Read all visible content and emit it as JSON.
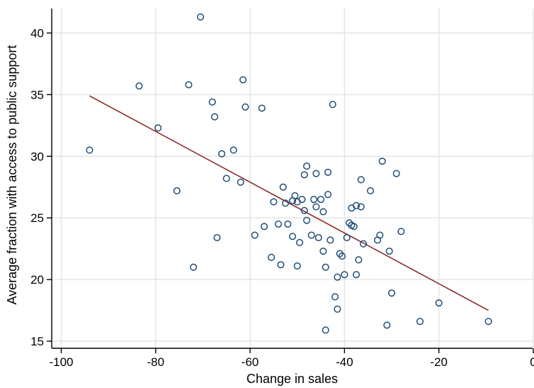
{
  "chart_data": {
    "type": "scatter",
    "title": "",
    "xlabel": "Change in sales",
    "ylabel": "Average fraction with access to public support",
    "xlim": [
      -100,
      0
    ],
    "ylim": [
      15,
      42
    ],
    "xticks": [
      -100,
      -80,
      -60,
      -40,
      -20,
      0
    ],
    "xtick_labels": [
      "-100",
      "-80",
      "-60",
      "-40",
      "-20",
      "0"
    ],
    "yticks": [
      15,
      20,
      25,
      30,
      35,
      40
    ],
    "ytick_labels": [
      "15",
      "20",
      "25",
      "30",
      "35",
      "40"
    ],
    "grid": true,
    "legend": "none",
    "colors": {
      "marker": "#1f4e79",
      "fit_line": "#8b2e2e",
      "grid": "#e3e3e3",
      "axis": "#000000"
    },
    "points": [
      [
        -94,
        30.5
      ],
      [
        -83.5,
        35.7
      ],
      [
        -79.5,
        32.3
      ],
      [
        -75.5,
        27.2
      ],
      [
        -73,
        35.8
      ],
      [
        -72,
        21
      ],
      [
        -70.5,
        41.3
      ],
      [
        -68,
        34.4
      ],
      [
        -67.5,
        33.2
      ],
      [
        -67,
        23.4
      ],
      [
        -66,
        30.2
      ],
      [
        -65,
        28.2
      ],
      [
        -63.5,
        30.5
      ],
      [
        -62,
        27.9
      ],
      [
        -61.5,
        36.2
      ],
      [
        -61,
        34
      ],
      [
        -59,
        23.6
      ],
      [
        -57.5,
        33.9
      ],
      [
        -57,
        24.3
      ],
      [
        -55.5,
        21.8
      ],
      [
        -55,
        26.3
      ],
      [
        -54,
        24.5
      ],
      [
        -53.5,
        21.2
      ],
      [
        -53,
        27.5
      ],
      [
        -52.5,
        26.2
      ],
      [
        -52,
        24.5
      ],
      [
        -51,
        26.4
      ],
      [
        -51,
        23.5
      ],
      [
        -50.5,
        26.8
      ],
      [
        -50,
        21.1
      ],
      [
        -50,
        26.3
      ],
      [
        -49.5,
        23
      ],
      [
        -49,
        26.5
      ],
      [
        -48.5,
        28.5
      ],
      [
        -48.5,
        25.6
      ],
      [
        -48,
        24.8
      ],
      [
        -48,
        29.2
      ],
      [
        -47,
        23.6
      ],
      [
        -46.5,
        26.5
      ],
      [
        -46,
        25.9
      ],
      [
        -46,
        28.6
      ],
      [
        -45.5,
        23.4
      ],
      [
        -45,
        26.5
      ],
      [
        -44.5,
        22.3
      ],
      [
        -44.5,
        25.5
      ],
      [
        -44,
        21
      ],
      [
        -44,
        15.9
      ],
      [
        -43.5,
        26.9
      ],
      [
        -43.5,
        28.7
      ],
      [
        -43,
        23.2
      ],
      [
        -42.5,
        34.2
      ],
      [
        -42,
        18.6
      ],
      [
        -41.5,
        20.2
      ],
      [
        -41.5,
        17.6
      ],
      [
        -41,
        22.1
      ],
      [
        -40.5,
        21.9
      ],
      [
        -40,
        20.4
      ],
      [
        -39.5,
        23.4
      ],
      [
        -39,
        24.6
      ],
      [
        -38.5,
        25.8
      ],
      [
        -38.5,
        24.4
      ],
      [
        -38,
        24.3
      ],
      [
        -37.5,
        26
      ],
      [
        -37.5,
        20.4
      ],
      [
        -37,
        21.6
      ],
      [
        -36.5,
        28.1
      ],
      [
        -36.5,
        25.9
      ],
      [
        -36,
        22.9
      ],
      [
        -34.5,
        27.2
      ],
      [
        -33,
        23.2
      ],
      [
        -32.5,
        23.6
      ],
      [
        -32,
        29.6
      ],
      [
        -31,
        16.3
      ],
      [
        -30.5,
        22.3
      ],
      [
        -30,
        18.9
      ],
      [
        -29,
        28.6
      ],
      [
        -28,
        23.9
      ],
      [
        -24,
        16.6
      ],
      [
        -20,
        18.1
      ],
      [
        -9.5,
        16.6
      ]
    ],
    "fit_line": {
      "x": [
        -94,
        -9.5
      ],
      "y": [
        34.9,
        17.5
      ]
    }
  }
}
